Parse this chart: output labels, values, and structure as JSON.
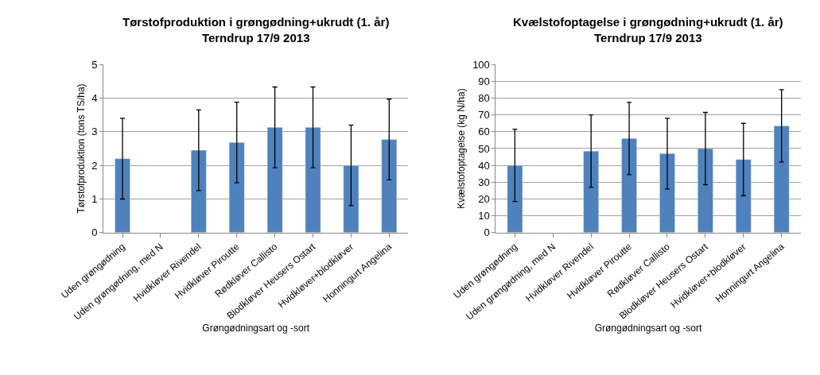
{
  "chart_data": [
    {
      "type": "bar",
      "title": "Tørstofproduktion i grøngødning+ukrudt (1. år)\nTerndrup 17/9 2013",
      "xlabel": "Grøngødningsart og -sort",
      "ylabel": "Tørstofproduktion (tons TS/ha)",
      "categories": [
        "Uden grøngødning",
        "Uden grøngødning, med N",
        "Hvidkløver Rivendel",
        "Hvidkløver Piroutte",
        "Rødkløver Callisto",
        "Blodkløver Heusers Ostart",
        "Hvidkløver+blodkløver",
        "Honningurt Angelina"
      ],
      "values": [
        2.2,
        null,
        2.45,
        2.68,
        3.13,
        3.13,
        2.0,
        2.77
      ],
      "errors": [
        1.2,
        null,
        1.2,
        1.2,
        1.2,
        1.2,
        1.2,
        1.2
      ],
      "color": "#4f81bd",
      "ylim": [
        0,
        5
      ],
      "yticks": [
        0,
        1,
        2,
        3,
        4,
        5
      ],
      "grid": "y"
    },
    {
      "type": "bar",
      "title": "Kvælstofoptagelse i grøngødning+ukrudt (1. år)\nTerndrup 17/9 2013",
      "xlabel": "Grøngødningsart og -sort",
      "ylabel": "Kvælstofoptagelse (kg N/ha)",
      "categories": [
        "Uden grøngødning",
        "Uden grøngødning, med N",
        "Hvidkløver Rivendel",
        "Hvidkløver Piroutte",
        "Rødkløver Callisto",
        "Blodkløver Heusers Ostart",
        "Hvidkløver+blodkløver",
        "Honningurt Angelina"
      ],
      "values": [
        40,
        null,
        48.5,
        56,
        47,
        50,
        43.5,
        63.5
      ],
      "errors": [
        21.5,
        null,
        21.5,
        21.5,
        21,
        21.5,
        21.5,
        21.5
      ],
      "color": "#4f81bd",
      "ylim": [
        0,
        100
      ],
      "yticks": [
        0,
        10,
        20,
        30,
        40,
        50,
        60,
        70,
        80,
        90,
        100
      ],
      "grid": "y"
    }
  ]
}
